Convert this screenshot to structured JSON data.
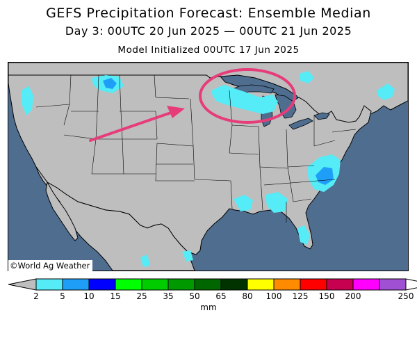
{
  "header": {
    "title": "GEFS Precipitation Forecast: Ensemble Median",
    "valid_period": "Day 3: 00UTC 20 Jun 2025 — 00UTC 21 Jun 2025",
    "initialized": "Model Initialized 00UTC 17 Jun 2025"
  },
  "map": {
    "region": "Contiguous United States",
    "credit": "©World Ag Weather",
    "colors": {
      "ocean": "#4e6d8f",
      "land": "#bebebe",
      "borders": "#000000",
      "annotation": "#e63d7a"
    },
    "annotations": [
      "arrow-pointing-to-great-lakes",
      "circle-around-upper-great-lakes"
    ]
  },
  "legend": {
    "unit": "mm",
    "labels": [
      "2",
      "5",
      "10",
      "15",
      "25",
      "35",
      "50",
      "65",
      "80",
      "100",
      "125",
      "150",
      "200",
      "250"
    ],
    "colors": [
      "#55ecf7",
      "#1f9ef7",
      "#0000ff",
      "#00ff00",
      "#00cc00",
      "#009900",
      "#006600",
      "#003300",
      "#ffff00",
      "#ff8c00",
      "#ff0000",
      "#c80050",
      "#ff00ff",
      "#a050d2"
    ],
    "under_color": "#bebebe",
    "over_color": "#ffffff"
  }
}
